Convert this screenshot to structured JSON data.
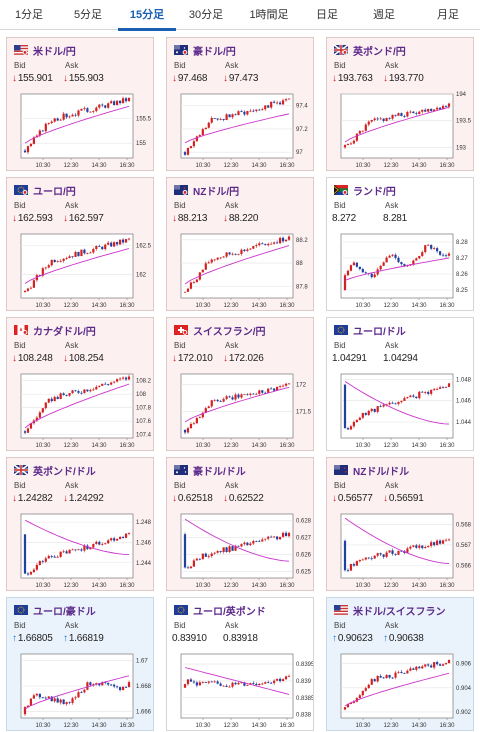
{
  "tabs": [
    {
      "label": "1分足",
      "active": false
    },
    {
      "label": "5分足",
      "active": false
    },
    {
      "label": "15分足",
      "active": true
    },
    {
      "label": "30分足",
      "active": false
    },
    {
      "label": "1時間足",
      "active": false
    },
    {
      "label": "日足",
      "active": false
    },
    {
      "label": "週足",
      "active": false
    },
    {
      "label": "月足",
      "active": false
    }
  ],
  "labels": {
    "bid": "Bid",
    "ask": "Ask"
  },
  "colors": {
    "up_candle": "#d42020",
    "down_candle": "#2140a0",
    "moving_average": "#cc33cc",
    "down_arrow": "#d42020",
    "up_arrow": "#1a6fd4"
  },
  "x_ticks": [
    "10:30",
    "12:30",
    "14:30",
    "16:30"
  ],
  "cards": [
    {
      "pair": "米ドル/円",
      "flag": "us-jp",
      "dir": "down",
      "bid": "155.901",
      "ask": "155.903",
      "bg": "pink",
      "chart_data": {
        "type": "candlestick",
        "x_ticks": [
          "10:30",
          "12:30",
          "14:30",
          "16:30"
        ],
        "y_ticks": [
          "155.5",
          "155"
        ],
        "ylim": [
          154.7,
          156.0
        ],
        "start": 154.85,
        "end": 155.9,
        "ma_start": 155.0,
        "ma_end": 155.75,
        "shape": "rise"
      }
    },
    {
      "pair": "豪ドル/円",
      "flag": "au-jp",
      "dir": "down",
      "bid": "97.468",
      "ask": "97.473",
      "bg": "pink",
      "chart_data": {
        "type": "candlestick",
        "x_ticks": [
          "10:30",
          "12:30",
          "14:30",
          "16:30"
        ],
        "y_ticks": [
          "97.4",
          "97.2",
          "97"
        ],
        "ylim": [
          96.95,
          97.5
        ],
        "start": 97.0,
        "end": 97.45,
        "ma_start": 97.08,
        "ma_end": 97.33,
        "shape": "rise"
      }
    },
    {
      "pair": "英ポンド/円",
      "flag": "gb-jp",
      "dir": "down",
      "bid": "193.763",
      "ask": "193.770",
      "bg": "pink",
      "chart_data": {
        "type": "candlestick",
        "x_ticks": [
          "10:30",
          "12:30",
          "14:30",
          "16:30"
        ],
        "y_ticks": [
          "194",
          "193.5",
          "193"
        ],
        "ylim": [
          192.8,
          194.0
        ],
        "start": 193.0,
        "end": 193.8,
        "ma_start": 193.1,
        "ma_end": 193.75,
        "shape": "rise"
      }
    },
    {
      "pair": "ユーロ/円",
      "flag": "eu-jp",
      "dir": "down",
      "bid": "162.593",
      "ask": "162.597",
      "bg": "pink",
      "chart_data": {
        "type": "candlestick",
        "x_ticks": [
          "10:30",
          "12:30",
          "14:30",
          "16:30"
        ],
        "y_ticks": [
          "162.5",
          "162"
        ],
        "ylim": [
          161.6,
          162.7
        ],
        "start": 161.7,
        "end": 162.6,
        "ma_start": 161.85,
        "ma_end": 162.45,
        "shape": "rise"
      }
    },
    {
      "pair": "NZドル/円",
      "flag": "nz-jp",
      "dir": "down",
      "bid": "88.213",
      "ask": "88.220",
      "bg": "pink",
      "chart_data": {
        "type": "candlestick",
        "x_ticks": [
          "10:30",
          "12:30",
          "14:30",
          "16:30"
        ],
        "y_ticks": [
          "88.2",
          "88",
          "87.8"
        ],
        "ylim": [
          87.7,
          88.25
        ],
        "start": 87.75,
        "end": 88.22,
        "ma_start": 87.82,
        "ma_end": 88.15,
        "shape": "rise"
      }
    },
    {
      "pair": "ランド/円",
      "flag": "za-jp",
      "dir": "none",
      "bid": "8.272",
      "ask": "8.281",
      "bg": "white",
      "chart_data": {
        "type": "candlestick",
        "x_ticks": [
          "10:30",
          "12:30",
          "14:30",
          "16:30"
        ],
        "y_ticks": [
          "8.28",
          "8.27",
          "8.26",
          "8.25"
        ],
        "ylim": [
          8.245,
          8.285
        ],
        "start": 8.25,
        "end": 8.272,
        "ma_start": 8.256,
        "ma_end": 8.27,
        "shape": "choppy"
      }
    },
    {
      "pair": "カナダドル/円",
      "flag": "ca-jp",
      "dir": "down",
      "bid": "108.248",
      "ask": "108.254",
      "bg": "pink",
      "chart_data": {
        "type": "candlestick",
        "x_ticks": [
          "10:30",
          "12:30",
          "14:30",
          "16:30"
        ],
        "y_ticks": [
          "108.2",
          "108",
          "107.8",
          "107.6",
          "107.4"
        ],
        "ylim": [
          107.35,
          108.3
        ],
        "start": 107.45,
        "end": 108.25,
        "ma_start": 107.5,
        "ma_end": 108.15,
        "shape": "rise"
      }
    },
    {
      "pair": "スイスフラン/円",
      "flag": "ch-jp",
      "dir": "down",
      "bid": "172.010",
      "ask": "172.026",
      "bg": "pink",
      "chart_data": {
        "type": "candlestick",
        "x_ticks": [
          "10:30",
          "12:30",
          "14:30",
          "16:30"
        ],
        "y_ticks": [
          "172",
          "171.5"
        ],
        "ylim": [
          171.0,
          172.2
        ],
        "start": 171.15,
        "end": 172.0,
        "ma_start": 171.3,
        "ma_end": 171.95,
        "shape": "rise"
      }
    },
    {
      "pair": "ユーロ/ドル",
      "flag": "eu-us",
      "dir": "none",
      "bid": "1.04291",
      "ask": "1.04294",
      "bg": "white",
      "chart_data": {
        "type": "candlestick",
        "x_ticks": [
          "10:30",
          "12:30",
          "14:30",
          "16:30"
        ],
        "y_ticks": [
          "1.048",
          "1.046",
          "1.044"
        ],
        "ylim": [
          1.0425,
          1.0485
        ],
        "start": 1.0475,
        "end": 1.0432,
        "ma_start": 1.0478,
        "ma_end": 1.0438,
        "shape": "fall"
      }
    },
    {
      "pair": "英ポンド/ドル",
      "flag": "gb-us",
      "dir": "down",
      "bid": "1.24282",
      "ask": "1.24292",
      "bg": "pink",
      "chart_data": {
        "type": "candlestick",
        "x_ticks": [
          "10:30",
          "12:30",
          "14:30",
          "16:30"
        ],
        "y_ticks": [
          "1.248",
          "1.246",
          "1.244"
        ],
        "ylim": [
          1.2425,
          1.2488
        ],
        "start": 1.2468,
        "end": 1.2428,
        "ma_start": 1.2482,
        "ma_end": 1.2448,
        "shape": "fall"
      }
    },
    {
      "pair": "豪ドル/ドル",
      "flag": "au-us",
      "dir": "down",
      "bid": "0.62518",
      "ask": "0.62522",
      "bg": "pink",
      "chart_data": {
        "type": "candlestick",
        "x_ticks": [
          "10:30",
          "12:30",
          "14:30",
          "16:30"
        ],
        "y_ticks": [
          "0.628",
          "0.627",
          "0.626",
          "0.625"
        ],
        "ylim": [
          0.6246,
          0.6284
        ],
        "start": 0.6272,
        "end": 0.6252,
        "ma_start": 0.6281,
        "ma_end": 0.6256,
        "shape": "fall"
      }
    },
    {
      "pair": "NZドル/ドル",
      "flag": "nz-us",
      "dir": "down",
      "bid": "0.56577",
      "ask": "0.56591",
      "bg": "pink",
      "chart_data": {
        "type": "candlestick",
        "x_ticks": [
          "10:30",
          "12:30",
          "14:30",
          "16:30"
        ],
        "y_ticks": [
          "0.568",
          "0.567",
          "0.566"
        ],
        "ylim": [
          0.5654,
          0.5685
        ],
        "start": 0.5672,
        "end": 0.5658,
        "ma_start": 0.5683,
        "ma_end": 0.5661,
        "shape": "fall"
      }
    },
    {
      "pair": "ユーロ/豪ドル",
      "flag": "eu-au",
      "dir": "up",
      "bid": "1.66805",
      "ask": "1.66819",
      "bg": "blue",
      "chart_data": {
        "type": "candlestick",
        "x_ticks": [
          "10:30",
          "12:30",
          "14:30",
          "16:30"
        ],
        "y_ticks": [
          "1.67",
          "1.668",
          "1.666"
        ],
        "ylim": [
          1.6655,
          1.6705
        ],
        "start": 1.6658,
        "end": 1.6682,
        "ma_start": 1.6662,
        "ma_end": 1.6688,
        "shape": "choppyrise"
      }
    },
    {
      "pair": "ユーロ/英ポンド",
      "flag": "eu-gb",
      "dir": "none",
      "bid": "0.83910",
      "ask": "0.83918",
      "bg": "white",
      "chart_data": {
        "type": "candlestick",
        "x_ticks": [
          "10:30",
          "12:30",
          "14:30",
          "16:30"
        ],
        "y_ticks": [
          "0.8395",
          "0.839",
          "0.8385",
          "0.838"
        ],
        "ylim": [
          0.8379,
          0.8398
        ],
        "start": 0.8388,
        "end": 0.8391,
        "ma_start": 0.8394,
        "ma_end": 0.8386,
        "shape": "dip"
      }
    },
    {
      "pair": "米ドル/スイスフラン",
      "flag": "us-ch",
      "dir": "up",
      "bid": "0.90623",
      "ask": "0.90638",
      "bg": "blue",
      "chart_data": {
        "type": "candlestick",
        "x_ticks": [
          "10:30",
          "12:30",
          "14:30",
          "16:30"
        ],
        "y_ticks": [
          "0.906",
          "0.904",
          "0.902"
        ],
        "ylim": [
          0.9015,
          0.9068
        ],
        "start": 0.9022,
        "end": 0.9062,
        "ma_start": 0.9025,
        "ma_end": 0.9052,
        "shape": "rise"
      }
    }
  ]
}
